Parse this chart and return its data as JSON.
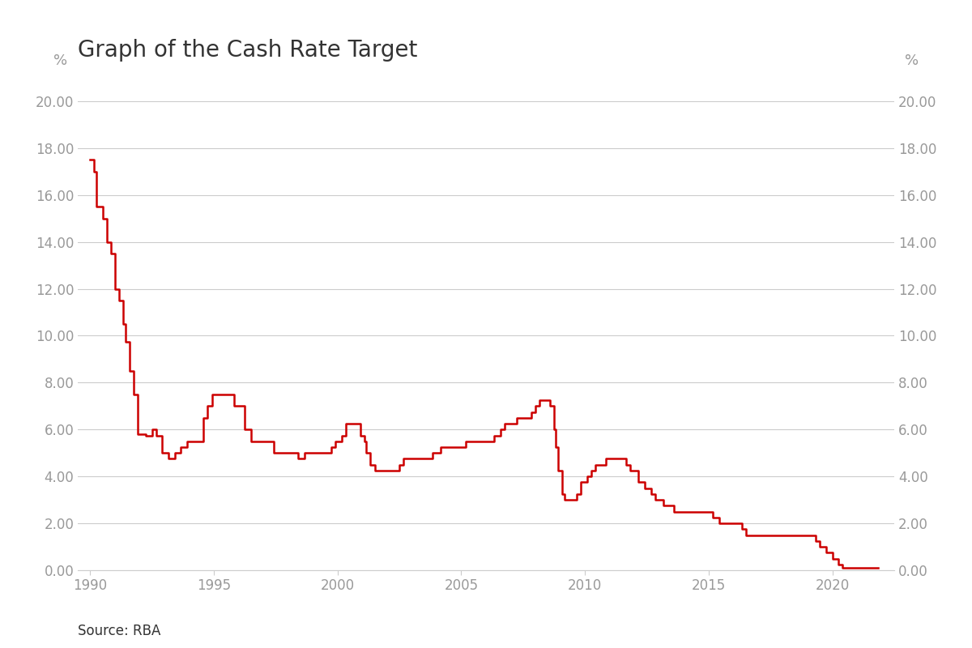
{
  "title": "Graph of the Cash Rate Target",
  "source": "Source: RBA",
  "ylabel_left": "%",
  "ylabel_right": "%",
  "line_color": "#cc0000",
  "line_width": 1.8,
  "background_color": "#ffffff",
  "grid_color": "#cccccc",
  "tick_label_color": "#999999",
  "title_color": "#333333",
  "source_color": "#333333",
  "ylim": [
    0,
    21
  ],
  "yticks": [
    0,
    2,
    4,
    6,
    8,
    10,
    12,
    14,
    16,
    18,
    20
  ],
  "ytick_labels": [
    "0.00",
    "2.00",
    "4.00",
    "6.00",
    "8.00",
    "10.00",
    "12.00",
    "14.00",
    "16.00",
    "18.00",
    "20.00"
  ],
  "xlim_start": 1989.5,
  "xlim_end": 2022.5,
  "xticks": [
    1990,
    1995,
    2000,
    2005,
    2010,
    2015,
    2020
  ],
  "data": [
    [
      1990.0,
      17.5
    ],
    [
      1990.17,
      17.0
    ],
    [
      1990.25,
      15.5
    ],
    [
      1990.5,
      15.0
    ],
    [
      1990.67,
      14.0
    ],
    [
      1990.83,
      13.5
    ],
    [
      1991.0,
      12.0
    ],
    [
      1991.17,
      11.5
    ],
    [
      1991.33,
      10.5
    ],
    [
      1991.42,
      9.75
    ],
    [
      1991.58,
      8.5
    ],
    [
      1991.75,
      7.5
    ],
    [
      1991.92,
      5.8
    ],
    [
      1992.25,
      5.75
    ],
    [
      1992.5,
      6.0
    ],
    [
      1992.67,
      5.75
    ],
    [
      1992.92,
      5.0
    ],
    [
      1993.17,
      4.75
    ],
    [
      1993.42,
      5.0
    ],
    [
      1993.67,
      5.25
    ],
    [
      1993.92,
      5.5
    ],
    [
      1994.17,
      5.5
    ],
    [
      1994.42,
      5.5
    ],
    [
      1994.58,
      6.5
    ],
    [
      1994.75,
      7.0
    ],
    [
      1994.92,
      7.5
    ],
    [
      1995.0,
      7.5
    ],
    [
      1995.08,
      7.5
    ],
    [
      1995.33,
      7.5
    ],
    [
      1995.67,
      7.5
    ],
    [
      1995.83,
      7.0
    ],
    [
      1996.0,
      7.0
    ],
    [
      1996.17,
      7.0
    ],
    [
      1996.25,
      6.0
    ],
    [
      1996.5,
      5.5
    ],
    [
      1996.75,
      5.5
    ],
    [
      1996.92,
      5.5
    ],
    [
      1997.17,
      5.5
    ],
    [
      1997.42,
      5.0
    ],
    [
      1997.67,
      5.0
    ],
    [
      1997.83,
      5.0
    ],
    [
      1998.0,
      5.0
    ],
    [
      1998.25,
      5.0
    ],
    [
      1998.42,
      4.75
    ],
    [
      1998.67,
      5.0
    ],
    [
      1998.83,
      5.0
    ],
    [
      1999.17,
      5.0
    ],
    [
      1999.42,
      5.0
    ],
    [
      1999.75,
      5.25
    ],
    [
      1999.92,
      5.5
    ],
    [
      2000.17,
      5.75
    ],
    [
      2000.33,
      6.25
    ],
    [
      2000.58,
      6.25
    ],
    [
      2000.67,
      6.25
    ],
    [
      2000.83,
      6.25
    ],
    [
      2000.92,
      5.75
    ],
    [
      2001.08,
      5.5
    ],
    [
      2001.17,
      5.0
    ],
    [
      2001.33,
      4.5
    ],
    [
      2001.5,
      4.25
    ],
    [
      2001.67,
      4.25
    ],
    [
      2001.92,
      4.25
    ],
    [
      2002.17,
      4.25
    ],
    [
      2002.5,
      4.5
    ],
    [
      2002.67,
      4.75
    ],
    [
      2002.83,
      4.75
    ],
    [
      2003.17,
      4.75
    ],
    [
      2003.5,
      4.75
    ],
    [
      2003.67,
      4.75
    ],
    [
      2003.83,
      5.0
    ],
    [
      2004.17,
      5.25
    ],
    [
      2004.42,
      5.25
    ],
    [
      2004.58,
      5.25
    ],
    [
      2004.83,
      5.25
    ],
    [
      2005.17,
      5.5
    ],
    [
      2005.42,
      5.5
    ],
    [
      2005.58,
      5.5
    ],
    [
      2005.83,
      5.5
    ],
    [
      2006.17,
      5.5
    ],
    [
      2006.33,
      5.75
    ],
    [
      2006.58,
      6.0
    ],
    [
      2006.75,
      6.25
    ],
    [
      2007.08,
      6.25
    ],
    [
      2007.25,
      6.5
    ],
    [
      2007.42,
      6.5
    ],
    [
      2007.67,
      6.5
    ],
    [
      2007.83,
      6.75
    ],
    [
      2008.0,
      7.0
    ],
    [
      2008.17,
      7.25
    ],
    [
      2008.42,
      7.25
    ],
    [
      2008.58,
      7.0
    ],
    [
      2008.75,
      6.0
    ],
    [
      2008.83,
      5.25
    ],
    [
      2008.92,
      4.25
    ],
    [
      2009.08,
      3.25
    ],
    [
      2009.17,
      3.0
    ],
    [
      2009.25,
      3.0
    ],
    [
      2009.42,
      3.0
    ],
    [
      2009.67,
      3.25
    ],
    [
      2009.83,
      3.75
    ],
    [
      2010.08,
      4.0
    ],
    [
      2010.25,
      4.25
    ],
    [
      2010.42,
      4.5
    ],
    [
      2010.58,
      4.5
    ],
    [
      2010.83,
      4.75
    ],
    [
      2011.17,
      4.75
    ],
    [
      2011.42,
      4.75
    ],
    [
      2011.67,
      4.5
    ],
    [
      2011.83,
      4.25
    ],
    [
      2012.17,
      3.75
    ],
    [
      2012.42,
      3.5
    ],
    [
      2012.67,
      3.25
    ],
    [
      2012.83,
      3.0
    ],
    [
      2013.17,
      2.75
    ],
    [
      2013.42,
      2.75
    ],
    [
      2013.58,
      2.5
    ],
    [
      2013.83,
      2.5
    ],
    [
      2014.17,
      2.5
    ],
    [
      2014.42,
      2.5
    ],
    [
      2014.67,
      2.5
    ],
    [
      2014.83,
      2.5
    ],
    [
      2015.17,
      2.25
    ],
    [
      2015.42,
      2.0
    ],
    [
      2015.58,
      2.0
    ],
    [
      2015.83,
      2.0
    ],
    [
      2016.17,
      2.0
    ],
    [
      2016.33,
      1.75
    ],
    [
      2016.5,
      1.5
    ],
    [
      2016.75,
      1.5
    ],
    [
      2017.0,
      1.5
    ],
    [
      2017.25,
      1.5
    ],
    [
      2017.5,
      1.5
    ],
    [
      2017.75,
      1.5
    ],
    [
      2018.0,
      1.5
    ],
    [
      2018.25,
      1.5
    ],
    [
      2018.5,
      1.5
    ],
    [
      2018.75,
      1.5
    ],
    [
      2019.08,
      1.5
    ],
    [
      2019.33,
      1.25
    ],
    [
      2019.5,
      1.0
    ],
    [
      2019.75,
      0.75
    ],
    [
      2020.0,
      0.5
    ],
    [
      2020.25,
      0.25
    ],
    [
      2020.42,
      0.1
    ],
    [
      2020.58,
      0.1
    ],
    [
      2020.75,
      0.1
    ],
    [
      2021.0,
      0.1
    ],
    [
      2021.17,
      0.1
    ],
    [
      2021.42,
      0.1
    ],
    [
      2021.67,
      0.1
    ],
    [
      2021.83,
      0.1
    ]
  ]
}
